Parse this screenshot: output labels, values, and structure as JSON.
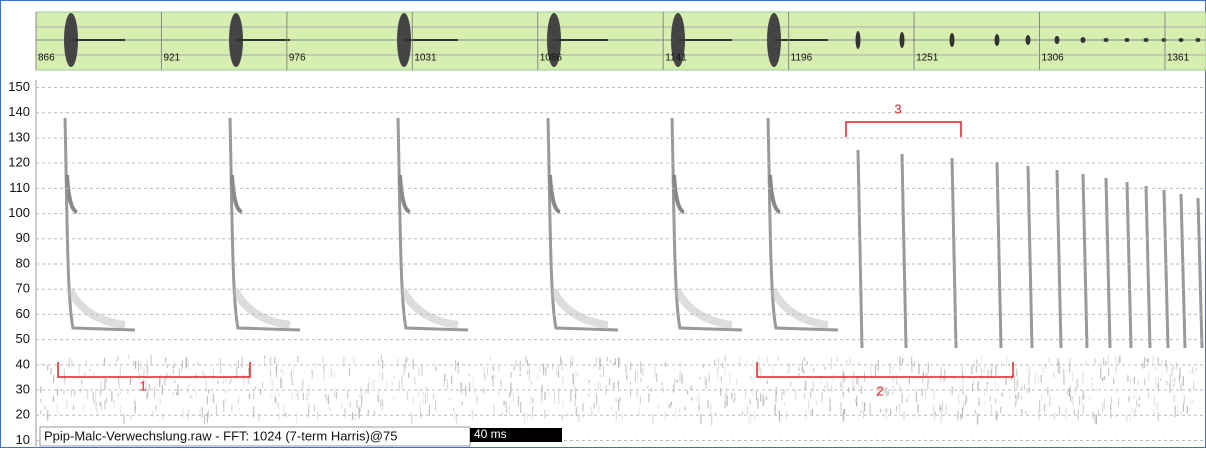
{
  "chart_data": {
    "type": "spectrogram",
    "xlim": [
      866,
      1379
    ],
    "xticks": [
      866,
      921,
      976,
      1031,
      1086,
      1141,
      1196,
      1251,
      1306,
      1361
    ],
    "ylim": [
      7,
      153
    ],
    "yticks": [
      10,
      20,
      30,
      40,
      50,
      60,
      70,
      80,
      90,
      100,
      110,
      120,
      130,
      140,
      150
    ],
    "grid": true,
    "annotations": [
      "1",
      "2",
      "3"
    ],
    "status": "Ppip-Malc-Verwechslung.raw - FFT: 1024 (7-term Harris)@75",
    "scale_bar": "40 ms"
  }
}
